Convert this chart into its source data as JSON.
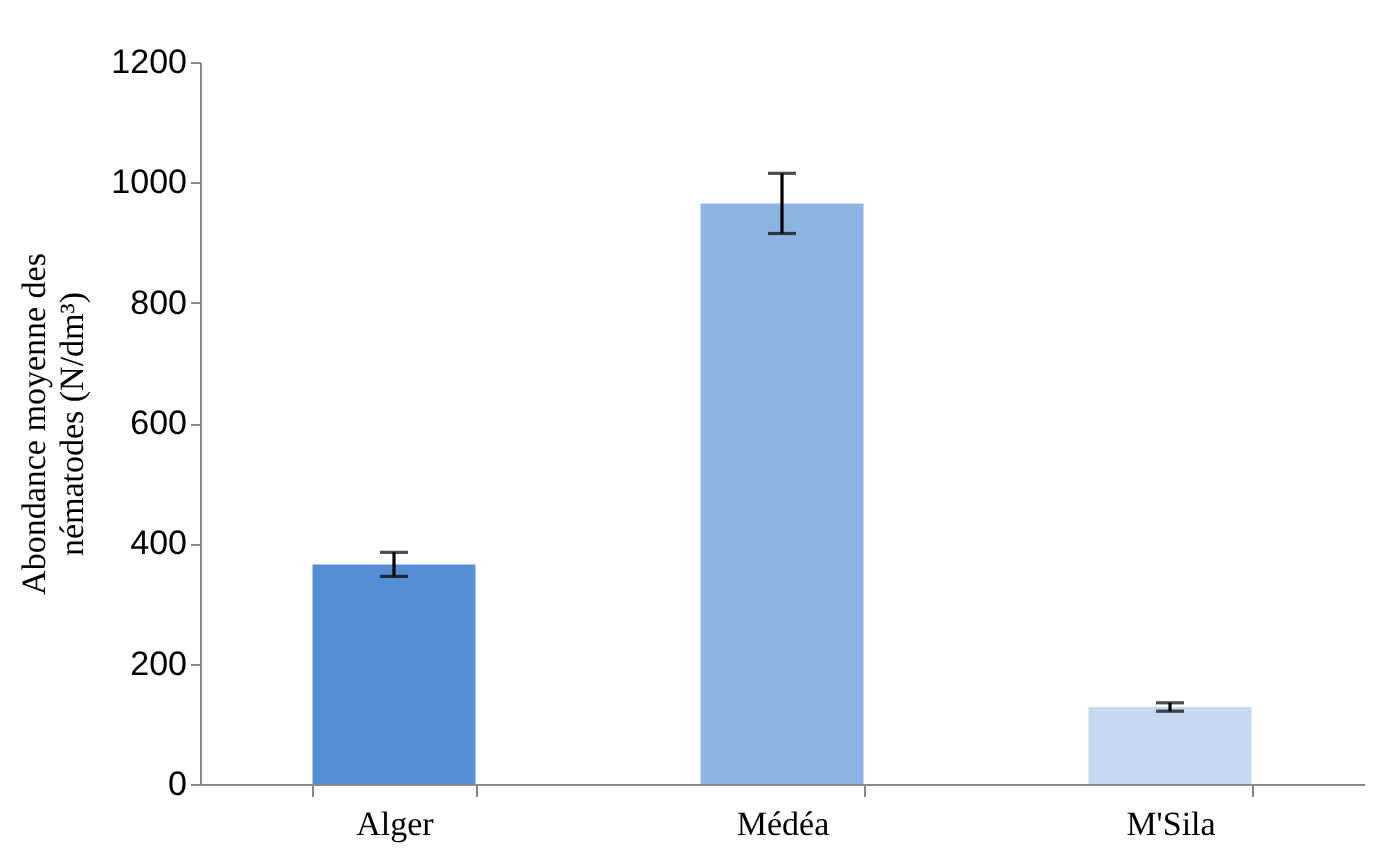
{
  "chart_data": {
    "type": "bar",
    "ylabel": "Abondance moyenne des nématodes (N/dm³)",
    "categories": [
      "Alger",
      "Médéa",
      "M'Sila"
    ],
    "values": [
      365,
      965,
      128
    ],
    "colors": [
      "#558ed5",
      "#8db3e2",
      "#c6d9f1"
    ],
    "errors": [
      20,
      50,
      7
    ],
    "ylim": [
      0,
      1200
    ],
    "yticks": [
      0,
      200,
      400,
      600,
      800,
      1000,
      1200
    ],
    "grid": false,
    "legend": false
  }
}
